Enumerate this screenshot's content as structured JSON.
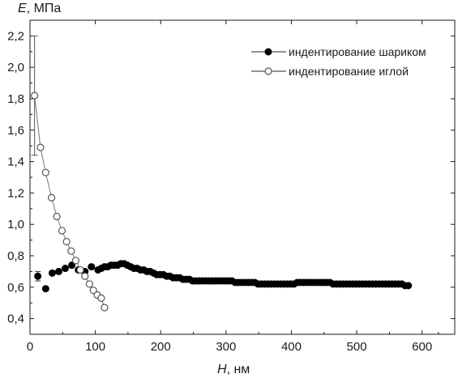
{
  "chart_data": {
    "type": "scatter",
    "title": "",
    "ylabel_symbol": "E",
    "ylabel_unit": ", МПа",
    "xlabel_symbol": "H",
    "xlabel_unit": ", нм",
    "xlim": [
      0,
      650
    ],
    "ylim": [
      0.3,
      2.3
    ],
    "xticks": [
      0,
      100,
      200,
      300,
      400,
      500,
      600
    ],
    "yticks": [
      0.4,
      0.6,
      0.8,
      1.0,
      1.2,
      1.4,
      1.6,
      1.8,
      2.0,
      2.2
    ],
    "ytick_labels": [
      "0,4",
      "0,6",
      "0,8",
      "1,0",
      "1,2",
      "1,4",
      "1,6",
      "1,8",
      "2,0",
      "2,2"
    ],
    "xtick_labels": [
      "0",
      "100",
      "200",
      "300",
      "400",
      "500",
      "600"
    ],
    "grid": false,
    "legend_position": "top-right",
    "series": [
      {
        "name": "индентирование шариком",
        "marker": "filled-circle",
        "color": "#000000",
        "x": [
          12,
          24,
          34,
          44,
          54,
          64,
          74,
          84,
          94,
          104,
          109,
          114,
          119,
          124,
          129,
          134,
          139,
          144,
          149,
          154,
          159,
          164,
          169,
          174,
          179,
          184,
          189,
          194,
          199,
          204,
          209,
          214,
          219,
          224,
          229,
          234,
          239,
          244,
          249,
          254,
          259,
          264,
          269,
          274,
          279,
          284,
          289,
          294,
          299,
          304,
          309,
          314,
          319,
          324,
          329,
          334,
          339,
          344,
          349,
          354,
          359,
          364,
          369,
          374,
          379,
          384,
          389,
          394,
          399,
          404,
          409,
          414,
          419,
          424,
          429,
          434,
          439,
          444,
          449,
          454,
          459,
          464,
          469,
          474,
          479,
          484,
          489,
          494,
          499,
          504,
          509,
          514,
          519,
          524,
          529,
          534,
          539,
          544,
          549,
          554,
          559,
          564,
          569,
          574,
          579
        ],
        "y": [
          0.67,
          0.59,
          0.69,
          0.7,
          0.72,
          0.74,
          0.71,
          0.7,
          0.73,
          0.71,
          0.72,
          0.73,
          0.73,
          0.74,
          0.74,
          0.74,
          0.75,
          0.75,
          0.74,
          0.73,
          0.72,
          0.72,
          0.71,
          0.71,
          0.7,
          0.7,
          0.69,
          0.68,
          0.68,
          0.68,
          0.67,
          0.67,
          0.66,
          0.66,
          0.66,
          0.65,
          0.65,
          0.65,
          0.64,
          0.64,
          0.64,
          0.64,
          0.64,
          0.64,
          0.64,
          0.64,
          0.64,
          0.64,
          0.64,
          0.64,
          0.64,
          0.63,
          0.63,
          0.63,
          0.63,
          0.63,
          0.63,
          0.63,
          0.62,
          0.62,
          0.62,
          0.62,
          0.62,
          0.62,
          0.62,
          0.62,
          0.62,
          0.62,
          0.62,
          0.62,
          0.63,
          0.63,
          0.63,
          0.63,
          0.63,
          0.63,
          0.63,
          0.63,
          0.63,
          0.63,
          0.63,
          0.62,
          0.62,
          0.62,
          0.62,
          0.62,
          0.62,
          0.62,
          0.62,
          0.62,
          0.62,
          0.62,
          0.62,
          0.62,
          0.62,
          0.62,
          0.62,
          0.62,
          0.62,
          0.62,
          0.62,
          0.62,
          0.62,
          0.61,
          0.61
        ],
        "error_bars": [
          {
            "x": 12,
            "low": 0.64,
            "high": 0.7
          }
        ]
      },
      {
        "name": "индентирование иглой",
        "marker": "open-circle",
        "color": "#555555",
        "x": [
          7,
          16,
          24,
          33,
          41,
          49,
          56,
          63,
          70,
          77,
          84,
          91,
          97,
          103,
          109,
          114
        ],
        "y": [
          1.82,
          1.49,
          1.33,
          1.17,
          1.05,
          0.96,
          0.89,
          0.83,
          0.77,
          0.71,
          0.67,
          0.62,
          0.58,
          0.55,
          0.53,
          0.47
        ],
        "error_bars": [
          {
            "x": 7,
            "low": 1.44,
            "high": 2.2
          }
        ],
        "connected": true
      }
    ]
  }
}
